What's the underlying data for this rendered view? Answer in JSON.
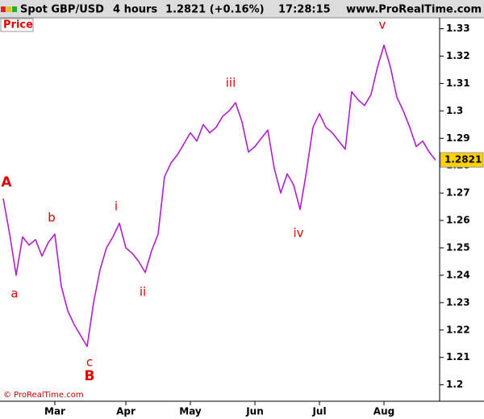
{
  "header": {
    "instrument": "Spot GBP/USD",
    "timeframe": "4 hours",
    "quote": "1.2821 (+0.16%)",
    "time": "17:28:15",
    "site": "www.ProRealTime.com"
  },
  "chart_data": {
    "type": "line",
    "panel_label": "Price",
    "copyright": "© ProRealTime.com",
    "categories": [
      null,
      null,
      null,
      null,
      null,
      null,
      null,
      null,
      "Mar",
      null,
      null,
      null,
      null,
      null,
      null,
      null,
      null,
      null,
      null,
      "Apr",
      null,
      null,
      null,
      null,
      null,
      null,
      null,
      null,
      null,
      "May",
      null,
      null,
      null,
      null,
      null,
      null,
      null,
      null,
      null,
      "Jun",
      null,
      null,
      null,
      null,
      null,
      null,
      null,
      null,
      null,
      "Jul",
      null,
      null,
      null,
      null,
      null,
      null,
      null,
      null,
      null,
      "Aug",
      null,
      null,
      null,
      null,
      null,
      null,
      null,
      null
    ],
    "series": [
      {
        "name": "GBP/USD",
        "color": "#b01ed0",
        "values": [
          1.268,
          1.255,
          1.24,
          1.254,
          1.251,
          1.253,
          1.247,
          1.252,
          1.255,
          1.236,
          1.227,
          1.222,
          1.218,
          1.214,
          1.23,
          1.242,
          1.25,
          1.254,
          1.259,
          1.25,
          1.248,
          1.245,
          1.241,
          1.249,
          1.255,
          1.276,
          1.281,
          1.284,
          1.288,
          1.292,
          1.289,
          1.295,
          1.292,
          1.294,
          1.298,
          1.3,
          1.303,
          1.296,
          1.285,
          1.287,
          1.29,
          1.293,
          1.279,
          1.27,
          1.277,
          1.273,
          1.264,
          1.278,
          1.294,
          1.299,
          1.294,
          1.292,
          1.289,
          1.286,
          1.307,
          1.304,
          1.302,
          1.306,
          1.316,
          1.324,
          1.316,
          1.305,
          1.3,
          1.294,
          1.287,
          1.289,
          1.285,
          1.282
        ]
      }
    ],
    "last_price": 1.2821,
    "ylim": [
      1.194,
      1.334
    ],
    "yticks": [
      1.2,
      1.21,
      1.22,
      1.23,
      1.24,
      1.25,
      1.26,
      1.27,
      1.28,
      1.29,
      1.3,
      1.31,
      1.32,
      1.33
    ],
    "annotations": [
      "A",
      "a",
      "b",
      "c",
      "B",
      "i",
      "ii",
      "iii",
      "iv",
      "v"
    ]
  }
}
